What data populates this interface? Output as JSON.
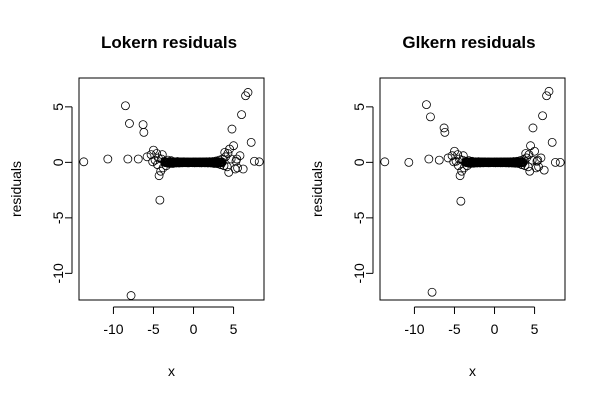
{
  "chart_data": [
    {
      "type": "scatter",
      "title": "Lokern residuals",
      "xlabel": "x",
      "ylabel": "residuals",
      "xlim": [
        -14.3,
        8.8
      ],
      "ylim": [
        -12.4,
        7.6
      ],
      "xticks": [
        -10,
        -5,
        0,
        5
      ],
      "yticks": [
        -10,
        -5,
        0,
        5
      ],
      "grid": false,
      "series": [
        {
          "points": [
            [
              -13.7,
              0.05
            ],
            [
              -10.7,
              0.3
            ],
            [
              -8.5,
              5.1
            ],
            [
              -8.0,
              3.5
            ],
            [
              -8.2,
              0.3
            ],
            [
              -7.8,
              -12.0
            ],
            [
              -6.9,
              0.3
            ],
            [
              -6.3,
              3.4
            ],
            [
              -6.2,
              2.7
            ],
            [
              -5.8,
              0.5
            ],
            [
              -5.3,
              0.7
            ],
            [
              -5.0,
              1.1
            ],
            [
              -4.8,
              0.2
            ],
            [
              -4.6,
              0.8
            ],
            [
              -4.5,
              -0.2
            ],
            [
              -4.4,
              0.4
            ],
            [
              -4.3,
              -1.2
            ],
            [
              -4.2,
              -3.4
            ],
            [
              -4.0,
              0.3
            ],
            [
              -3.8,
              -0.5
            ],
            [
              -3.6,
              0.1
            ],
            [
              -3.4,
              -0.3
            ],
            [
              -3.2,
              0.2
            ],
            [
              -3.0,
              -0.1
            ],
            [
              -2.8,
              0.15
            ],
            [
              -2.6,
              -0.1
            ],
            [
              -2.4,
              0.05
            ],
            [
              -2.2,
              -0.05
            ],
            [
              -2.0,
              0.08
            ],
            [
              -1.8,
              -0.06
            ],
            [
              -1.6,
              0.04
            ],
            [
              -1.4,
              -0.03
            ],
            [
              -1.2,
              0.05
            ],
            [
              -1.0,
              -0.02
            ],
            [
              -0.8,
              0.03
            ],
            [
              -0.6,
              -0.04
            ],
            [
              -0.4,
              0.02
            ],
            [
              -0.2,
              -0.02
            ],
            [
              0.0,
              0.03
            ],
            [
              0.2,
              -0.03
            ],
            [
              0.4,
              0.02
            ],
            [
              0.6,
              -0.02
            ],
            [
              0.8,
              0.03
            ],
            [
              1.0,
              -0.04
            ],
            [
              1.2,
              0.04
            ],
            [
              1.4,
              -0.03
            ],
            [
              1.6,
              0.05
            ],
            [
              1.8,
              -0.05
            ],
            [
              2.0,
              0.06
            ],
            [
              2.2,
              -0.06
            ],
            [
              2.4,
              0.08
            ],
            [
              2.6,
              -0.1
            ],
            [
              2.8,
              0.12
            ],
            [
              3.0,
              -0.12
            ],
            [
              3.2,
              0.2
            ],
            [
              3.4,
              -0.2
            ],
            [
              3.6,
              0.3
            ],
            [
              3.8,
              -0.3
            ],
            [
              4.0,
              0.5
            ],
            [
              4.2,
              -0.4
            ],
            [
              4.3,
              0.8
            ],
            [
              4.5,
              1.2
            ],
            [
              4.7,
              0.3
            ],
            [
              4.8,
              3.0
            ],
            [
              5.0,
              1.5
            ],
            [
              5.2,
              -0.6
            ],
            [
              5.4,
              0.3
            ],
            [
              5.5,
              -0.5
            ],
            [
              5.8,
              0.6
            ],
            [
              6.0,
              4.3
            ],
            [
              6.2,
              -0.6
            ],
            [
              6.5,
              6.0
            ],
            [
              6.8,
              6.3
            ],
            [
              7.2,
              1.8
            ],
            [
              7.6,
              0.1
            ],
            [
              8.2,
              0.05
            ],
            [
              -3.9,
              0.7
            ],
            [
              -4.1,
              -0.8
            ],
            [
              3.9,
              0.9
            ],
            [
              4.4,
              -0.9
            ],
            [
              -5.1,
              0.05
            ],
            [
              5.3,
              0.1
            ]
          ]
        }
      ]
    },
    {
      "type": "scatter",
      "title": "Glkern residuals",
      "xlabel": "x",
      "ylabel": "residuals",
      "xlim": [
        -14.3,
        8.8
      ],
      "ylim": [
        -12.4,
        7.6
      ],
      "xticks": [
        -10,
        -5,
        0,
        5
      ],
      "yticks": [
        -10,
        -5,
        0,
        5
      ],
      "grid": false,
      "series": [
        {
          "points": [
            [
              -13.7,
              0.05
            ],
            [
              -10.7,
              0.0
            ],
            [
              -8.5,
              5.2
            ],
            [
              -8.0,
              4.1
            ],
            [
              -8.2,
              0.3
            ],
            [
              -7.8,
              -11.7
            ],
            [
              -6.9,
              0.2
            ],
            [
              -6.3,
              3.1
            ],
            [
              -6.2,
              2.7
            ],
            [
              -5.8,
              0.4
            ],
            [
              -5.3,
              0.6
            ],
            [
              -5.0,
              1.0
            ],
            [
              -4.8,
              0.1
            ],
            [
              -4.6,
              0.7
            ],
            [
              -4.5,
              -0.3
            ],
            [
              -4.4,
              0.3
            ],
            [
              -4.3,
              -1.2
            ],
            [
              -4.2,
              -3.5
            ],
            [
              -4.0,
              0.2
            ],
            [
              -3.8,
              -0.5
            ],
            [
              -3.6,
              0.1
            ],
            [
              -3.4,
              -0.3
            ],
            [
              -3.2,
              0.15
            ],
            [
              -3.0,
              -0.1
            ],
            [
              -2.8,
              0.1
            ],
            [
              -2.6,
              -0.08
            ],
            [
              -2.4,
              0.05
            ],
            [
              -2.2,
              -0.05
            ],
            [
              -2.0,
              0.06
            ],
            [
              -1.8,
              -0.05
            ],
            [
              -1.6,
              0.04
            ],
            [
              -1.4,
              -0.03
            ],
            [
              -1.2,
              0.04
            ],
            [
              -1.0,
              -0.02
            ],
            [
              -0.8,
              0.03
            ],
            [
              -0.6,
              -0.03
            ],
            [
              -0.4,
              0.02
            ],
            [
              -0.2,
              -0.02
            ],
            [
              0.0,
              0.02
            ],
            [
              0.2,
              -0.02
            ],
            [
              0.4,
              0.02
            ],
            [
              0.6,
              -0.02
            ],
            [
              0.8,
              0.03
            ],
            [
              1.0,
              -0.03
            ],
            [
              1.2,
              0.04
            ],
            [
              1.4,
              -0.03
            ],
            [
              1.6,
              0.04
            ],
            [
              1.8,
              -0.05
            ],
            [
              2.0,
              0.05
            ],
            [
              2.2,
              -0.06
            ],
            [
              2.4,
              0.07
            ],
            [
              2.6,
              -0.08
            ],
            [
              2.8,
              0.1
            ],
            [
              3.0,
              -0.1
            ],
            [
              3.2,
              0.15
            ],
            [
              3.4,
              -0.2
            ],
            [
              3.6,
              0.25
            ],
            [
              3.8,
              -0.3
            ],
            [
              4.0,
              0.4
            ],
            [
              4.2,
              -0.4
            ],
            [
              4.3,
              0.7
            ],
            [
              4.5,
              1.5
            ],
            [
              4.7,
              0.2
            ],
            [
              4.8,
              3.1
            ],
            [
              5.0,
              1.0
            ],
            [
              5.2,
              -0.5
            ],
            [
              5.4,
              0.2
            ],
            [
              5.5,
              -0.4
            ],
            [
              5.8,
              0.4
            ],
            [
              6.0,
              4.2
            ],
            [
              6.2,
              -0.7
            ],
            [
              6.5,
              6.0
            ],
            [
              6.8,
              6.4
            ],
            [
              7.2,
              1.8
            ],
            [
              7.6,
              0.0
            ],
            [
              8.2,
              0.0
            ],
            [
              -3.9,
              0.6
            ],
            [
              -4.1,
              -0.8
            ],
            [
              3.9,
              0.8
            ],
            [
              4.4,
              -0.8
            ],
            [
              -5.1,
              0.05
            ],
            [
              5.3,
              0.1
            ]
          ]
        }
      ]
    }
  ]
}
